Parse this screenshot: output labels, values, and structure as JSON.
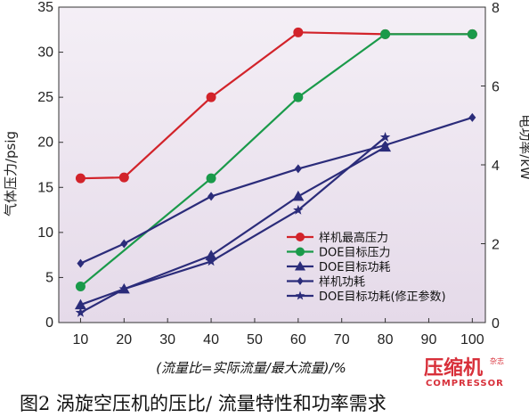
{
  "chart_data": {
    "type": "line",
    "x": [
      10,
      20,
      40,
      60,
      80,
      100
    ],
    "xlabel": "(流量比=实际流量/最大流量)/%",
    "xticks": [
      "10",
      "20",
      "30",
      "40",
      "50",
      "60",
      "70",
      "80",
      "90",
      "100"
    ],
    "xlim": [
      5,
      103
    ],
    "ylabel_left": "气体压力/psig",
    "ylim_left": [
      0,
      35
    ],
    "yticks_left": [
      "0",
      "5",
      "10",
      "15",
      "20",
      "25",
      "30",
      "35"
    ],
    "ylabel_right": "电功率/kW",
    "ylim_right": [
      0,
      8
    ],
    "yticks_right": [
      "0",
      "2",
      "4",
      "6",
      "8"
    ],
    "legend_position": "bottom-right",
    "background_color": "#e9e1ec",
    "series": [
      {
        "name": "样机最高压力",
        "axis": "left",
        "color": "#d2232a",
        "marker": "circle",
        "points": [
          [
            10,
            16.0
          ],
          [
            20,
            16.1
          ],
          [
            40,
            25.0
          ],
          [
            60,
            32.2
          ],
          [
            80,
            32.0
          ],
          [
            100,
            32.0
          ]
        ]
      },
      {
        "name": "DOE目标压力",
        "axis": "left",
        "color": "#1a9a4a",
        "marker": "circle",
        "points": [
          [
            10,
            4.0
          ],
          [
            40,
            16.0
          ],
          [
            60,
            25.0
          ],
          [
            80,
            32.0
          ],
          [
            100,
            32.0
          ]
        ]
      },
      {
        "name": "DOE目标功耗",
        "axis": "right",
        "color": "#2b2c7a",
        "marker": "triangle",
        "points": [
          [
            10,
            0.45
          ],
          [
            20,
            0.85
          ],
          [
            40,
            1.7
          ],
          [
            60,
            3.2
          ],
          [
            80,
            4.45
          ]
        ]
      },
      {
        "name": "样机功耗",
        "axis": "right",
        "color": "#2b2c7a",
        "marker": "diamond",
        "points": [
          [
            10,
            1.5
          ],
          [
            20,
            2.0
          ],
          [
            40,
            3.2
          ],
          [
            60,
            3.9
          ],
          [
            80,
            4.5
          ],
          [
            100,
            5.2
          ]
        ]
      },
      {
        "name": "DOE目标功耗(修正参数)",
        "axis": "right",
        "color": "#2b2c7a",
        "marker": "star",
        "points": [
          [
            10,
            0.25
          ],
          [
            20,
            0.85
          ],
          [
            40,
            1.55
          ],
          [
            60,
            2.85
          ],
          [
            80,
            4.7
          ]
        ]
      }
    ]
  },
  "caption": "图2 涡旋空压机的压比/ 流量特性和功率需求",
  "watermark": {
    "main": "压缩机",
    "side": "杂志",
    "english": "COMPRESSOR"
  }
}
